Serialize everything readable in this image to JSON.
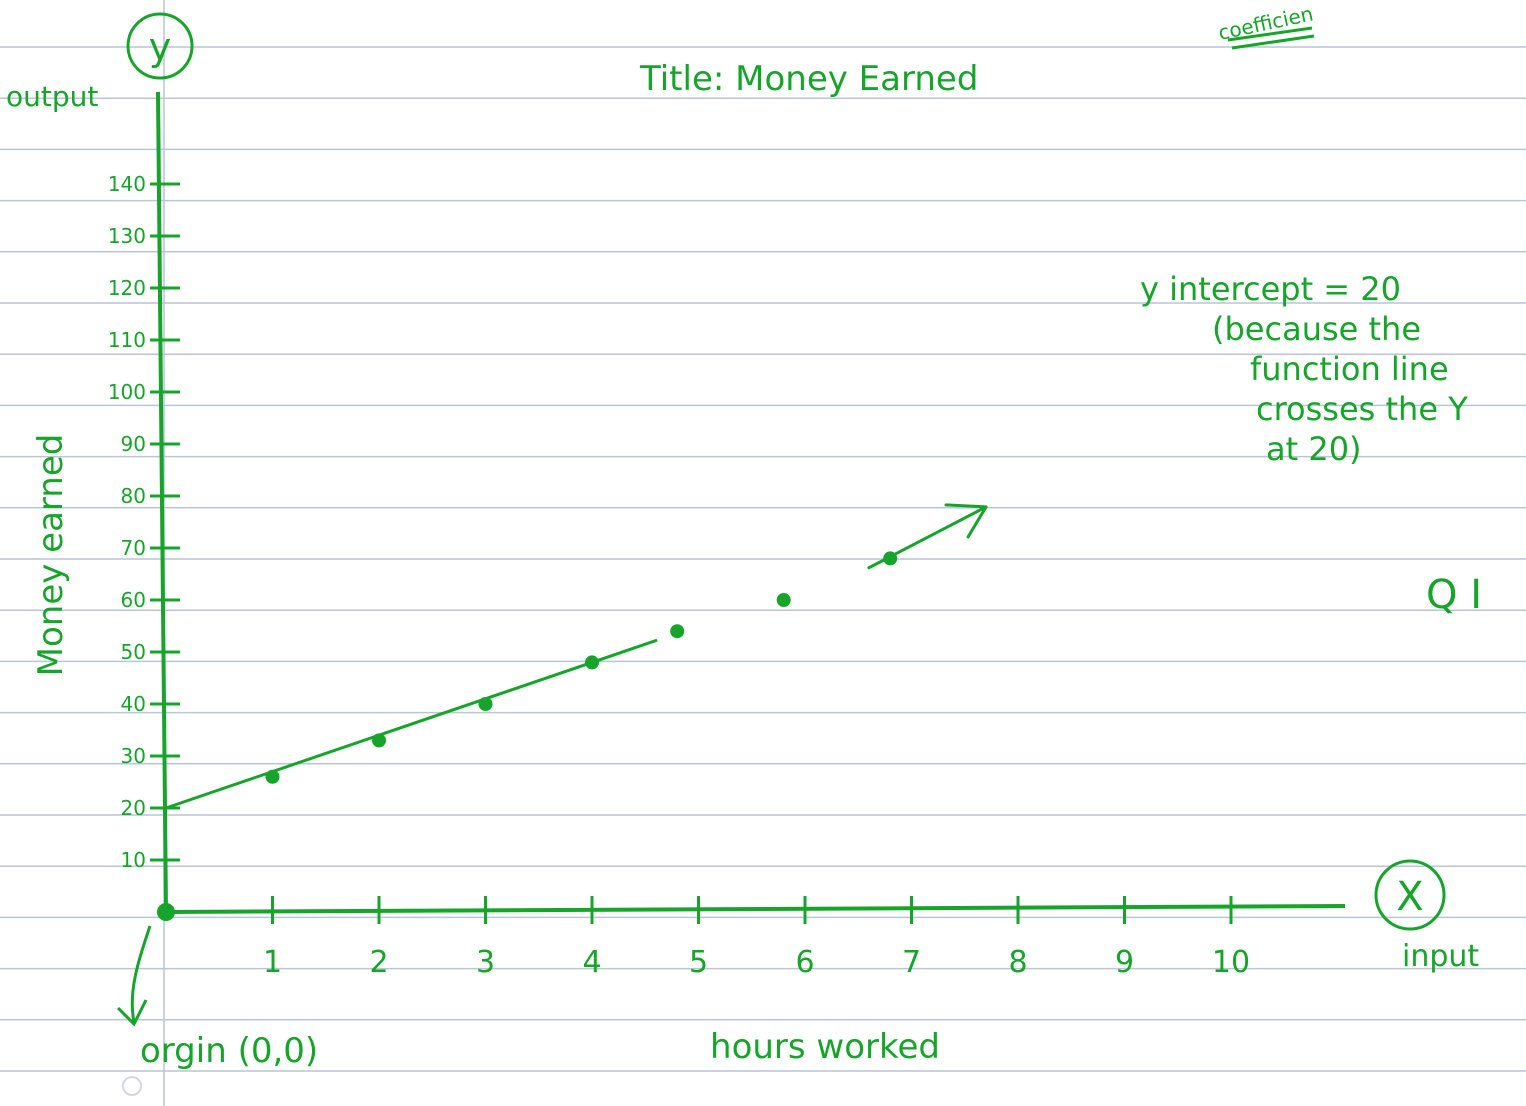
{
  "colors": {
    "ink": "#16a52a",
    "paper": "#ffffff",
    "rule": "#b9c6d6",
    "margin_line": "#b9c6d6",
    "hole": "#d3d8de"
  },
  "header_fragment": "coefficien",
  "side_note": {
    "lines": [
      "y intercept = 20",
      "(because the",
      "function line",
      "crosses the Y",
      "at 20)"
    ]
  },
  "quadrant_label": "Q I",
  "chart_data": {
    "type": "scatter",
    "title": "Title: Money Earned",
    "xlabel": "hours worked",
    "ylabel": "Money earned",
    "x_axis_name": "X",
    "y_axis_name": "y",
    "x_role": "input",
    "y_role": "output",
    "origin_label": "orgin (0,0)",
    "x_ticks": [
      "1",
      "2",
      "3",
      "4",
      "5",
      "6",
      "7",
      "8",
      "9",
      "10"
    ],
    "y_ticks": [
      "10",
      "20",
      "30",
      "40",
      "50",
      "60",
      "70",
      "80",
      "90",
      "100",
      "110",
      "120",
      "130",
      "140"
    ],
    "xlim": [
      0,
      11.4
    ],
    "ylim": [
      0,
      140
    ],
    "points": [
      {
        "x": 1,
        "y": 26
      },
      {
        "x": 2,
        "y": 33
      },
      {
        "x": 3,
        "y": 40
      },
      {
        "x": 4,
        "y": 48
      },
      {
        "x": 4.8,
        "y": 54
      },
      {
        "x": 5.8,
        "y": 60
      },
      {
        "x": 6.8,
        "y": 68
      }
    ],
    "trend_line": {
      "intercept": 20,
      "slope": 7
    },
    "grid": false
  }
}
